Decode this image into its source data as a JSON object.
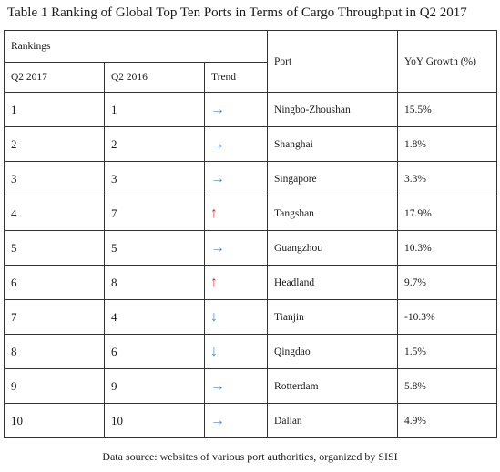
{
  "title": "Table 1 Ranking of Global Top Ten Ports in Terms of Cargo Throughput in Q2 2017",
  "header": {
    "rankings": "Rankings",
    "q2_2017": "Q2 2017",
    "q2_2016": "Q2 2016",
    "trend": "Trend",
    "port": "Port",
    "yoy": "YoY Growth (%)"
  },
  "rows": [
    {
      "q2_2017": "1",
      "q2_2016": "1",
      "trend": "→",
      "trend_type": "right",
      "port": "Ningbo-Zhoushan",
      "yoy": "15.5%"
    },
    {
      "q2_2017": "2",
      "q2_2016": "2",
      "trend": "→",
      "trend_type": "right",
      "port": "Shanghai",
      "yoy": "1.8%"
    },
    {
      "q2_2017": "3",
      "q2_2016": "3",
      "trend": "→",
      "trend_type": "right",
      "port": "Singapore",
      "yoy": "3.3%"
    },
    {
      "q2_2017": "4",
      "q2_2016": "7",
      "trend": "↑",
      "trend_type": "up",
      "port": "Tangshan",
      "yoy": "17.9%"
    },
    {
      "q2_2017": "5",
      "q2_2016": "5",
      "trend": "→",
      "trend_type": "right",
      "port": "Guangzhou",
      "yoy": "10.3%"
    },
    {
      "q2_2017": "6",
      "q2_2016": "8",
      "trend": "↑",
      "trend_type": "up",
      "port": "Headland",
      "yoy": "9.7%"
    },
    {
      "q2_2017": "7",
      "q2_2016": "4",
      "trend": "↓",
      "trend_type": "down",
      "port": "Tianjin",
      "yoy": "-10.3%"
    },
    {
      "q2_2017": "8",
      "q2_2016": "6",
      "trend": "↓",
      "trend_type": "down",
      "port": "Qingdao",
      "yoy": "1.5%"
    },
    {
      "q2_2017": "9",
      "q2_2016": "9",
      "trend": "→",
      "trend_type": "right",
      "port": "Rotterdam",
      "yoy": "5.8%"
    },
    {
      "q2_2017": "10",
      "q2_2016": "10",
      "trend": "→",
      "trend_type": "right",
      "port": "Dalian",
      "yoy": "4.9%"
    }
  ],
  "source": "Data source: websites of various port authorities, organized by SISI",
  "colors": {
    "trend_right": "#4a86d9",
    "trend_up": "#e0282b",
    "trend_down": "#3d8fe0"
  }
}
